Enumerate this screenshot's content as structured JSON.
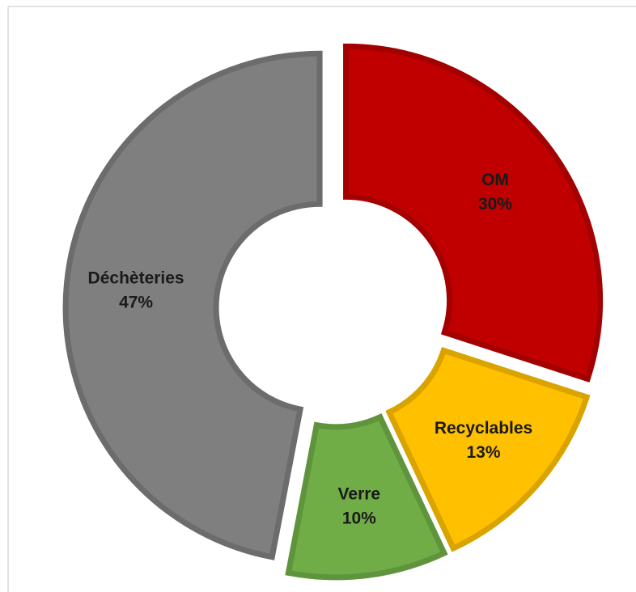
{
  "chart_data": {
    "type": "donut",
    "categories": [
      "OM",
      "Recyclables",
      "Verre",
      "Déchèteries"
    ],
    "values": [
      30,
      13,
      10,
      47
    ],
    "value_labels": [
      "30%",
      "13%",
      "10%",
      "47%"
    ],
    "colors": [
      "#c00000",
      "#ffc000",
      "#70ad47",
      "#7f7f7f"
    ]
  }
}
